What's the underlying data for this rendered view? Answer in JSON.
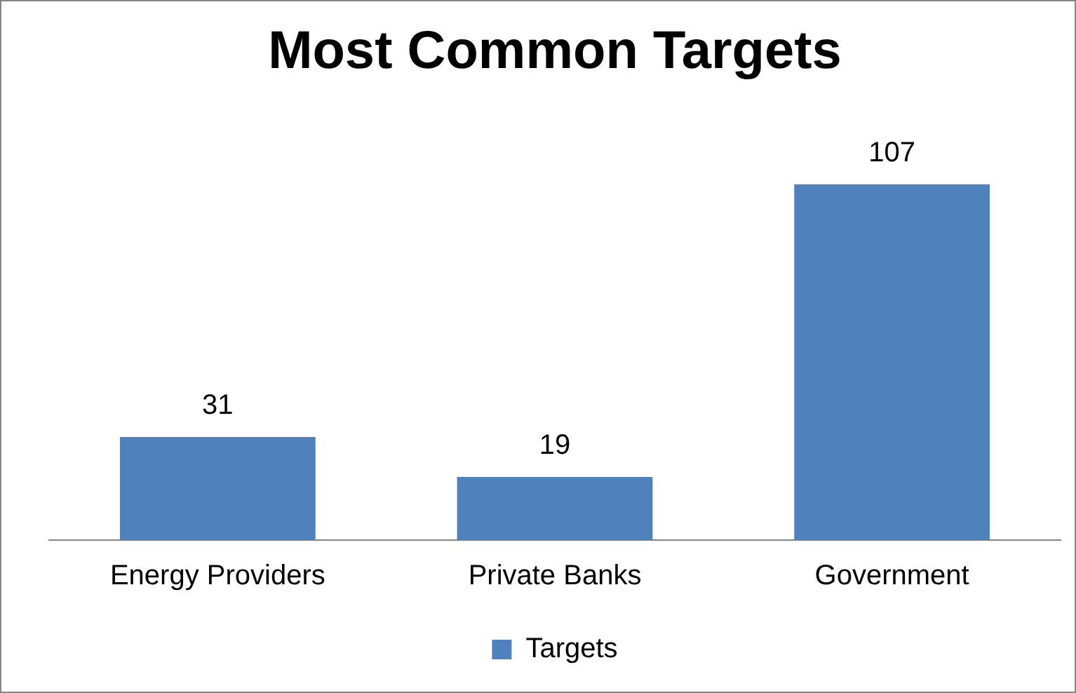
{
  "chart_data": {
    "type": "bar",
    "title": "Most Common Targets",
    "categories": [
      "Energy Providers",
      "Private Banks",
      "Government"
    ],
    "series": [
      {
        "name": "Targets",
        "color": "#4f81bd",
        "values": [
          31,
          19,
          107
        ]
      }
    ],
    "data_labels": true,
    "legend": "bottom",
    "grid": false
  }
}
